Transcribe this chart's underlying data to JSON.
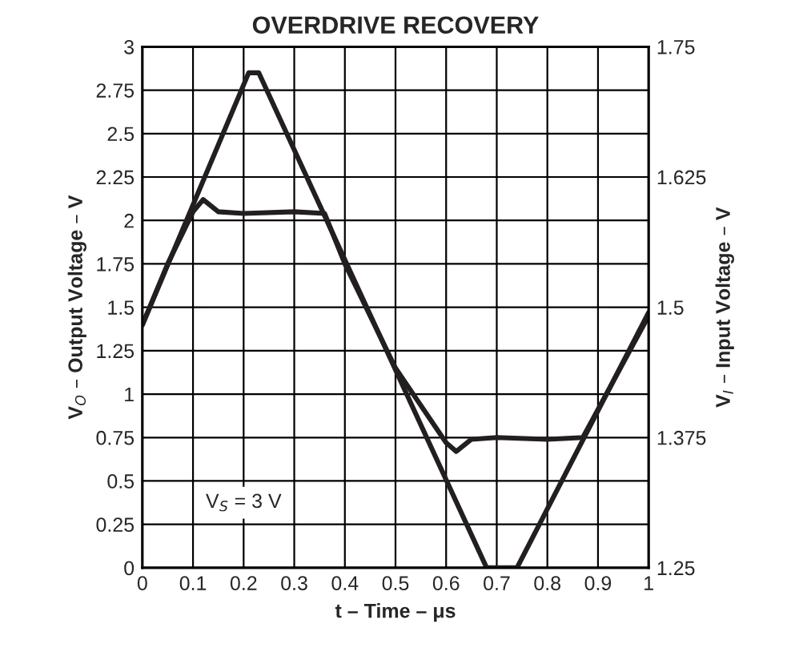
{
  "chart_data": {
    "type": "line",
    "title": "OVERDRIVE RECOVERY",
    "xlabel": "t – Time – μs",
    "ylabel": "V$_{O}$ – Output Voltage – V",
    "y2label": "V$_{I}$ – Input Voltage – V",
    "annotations": [
      "V$_{S}$ = 3 V"
    ],
    "series": [
      {
        "color": "#231f20",
        "x": [
          0,
          0.05,
          0.1,
          0.12,
          0.15,
          0.2,
          0.3,
          0.36,
          0.4,
          0.5,
          0.6,
          0.62,
          0.65,
          0.7,
          0.8,
          0.87,
          1
        ],
        "values": [
          1.4,
          1.75,
          2.05,
          2.12,
          2.05,
          2.04,
          2.05,
          2.04,
          1.75,
          1.15,
          0.72,
          0.67,
          0.74,
          0.75,
          0.74,
          0.75,
          1.45
        ]
      },
      {
        "color": "#231f20",
        "axis": "y2",
        "x": [
          0,
          0.21,
          0.23,
          0.68,
          0.74,
          1
        ],
        "values": [
          1.483,
          1.725,
          1.725,
          1.25,
          1.25,
          1.495
        ]
      }
    ],
    "xlim": [
      0,
      1
    ],
    "xticks": [
      0,
      0.1,
      0.2,
      0.3,
      0.4,
      0.5,
      0.6,
      0.7,
      0.8,
      0.9,
      1
    ],
    "ylim": [
      0,
      3
    ],
    "yticks": [
      0,
      0.25,
      0.5,
      0.75,
      1,
      1.25,
      1.5,
      1.75,
      2,
      2.25,
      2.5,
      2.75,
      3
    ],
    "y2lim": [
      1.25,
      1.75
    ],
    "y2ticks": [
      1.25,
      1.375,
      1.5,
      1.625,
      1.75
    ],
    "grid": true,
    "legend": false,
    "line_style": "solid",
    "marker": "none"
  }
}
